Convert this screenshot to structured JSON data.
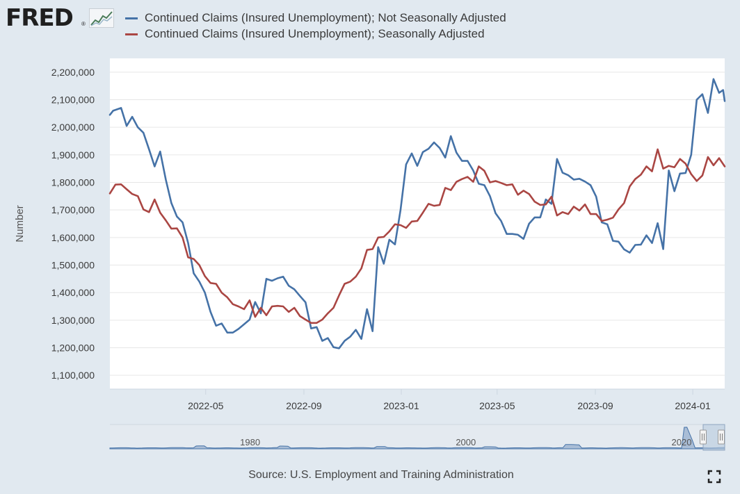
{
  "header": {
    "logo_text": "FRED",
    "logo_reg": "®"
  },
  "colors": {
    "background": "#e1e9f0",
    "plot_bg": "#ffffff",
    "grid": "#e6e6e6",
    "series_nsa": "#4572a7",
    "series_sa": "#aa4643"
  },
  "chart_data": {
    "type": "line",
    "title": "",
    "xlabel": "",
    "ylabel": "Number",
    "xlim": [
      "2022-01-01",
      "2024-02-10"
    ],
    "ylim": [
      1050000,
      2250000
    ],
    "y_ticks": [
      1100000,
      1200000,
      1300000,
      1400000,
      1500000,
      1600000,
      1700000,
      1800000,
      1900000,
      2000000,
      2100000,
      2200000
    ],
    "y_tick_labels": [
      "1,100,000",
      "1,200,000",
      "1,300,000",
      "1,400,000",
      "1,500,000",
      "1,600,000",
      "1,700,000",
      "1,800,000",
      "1,900,000",
      "2,000,000",
      "2,100,000",
      "2,200,000"
    ],
    "x_ticks": [
      "2022-05-01",
      "2022-09-01",
      "2023-01-01",
      "2023-05-01",
      "2023-09-01",
      "2024-01-01"
    ],
    "x_tick_labels": [
      "2022-05",
      "2022-09",
      "2023-01",
      "2023-05",
      "2023-09",
      "2024-01"
    ],
    "grid": "horizontal",
    "legend_position": "top-left",
    "series": [
      {
        "name": "Continued Claims (Insured Unemployment); Not Seasonally Adjusted",
        "color": "#4572a7",
        "points": [
          [
            "2022-01-01",
            2045000
          ],
          [
            "2022-01-05",
            2060000
          ],
          [
            "2022-01-15",
            2070000
          ],
          [
            "2022-01-22",
            2005000
          ],
          [
            "2022-01-29",
            2038000
          ],
          [
            "2022-02-05",
            2000000
          ],
          [
            "2022-02-12",
            1980000
          ],
          [
            "2022-02-19",
            1920000
          ],
          [
            "2022-02-26",
            1858000
          ],
          [
            "2022-03-05",
            1912000
          ],
          [
            "2022-03-12",
            1810000
          ],
          [
            "2022-03-19",
            1725000
          ],
          [
            "2022-03-26",
            1676000
          ],
          [
            "2022-04-02",
            1655000
          ],
          [
            "2022-04-09",
            1580000
          ],
          [
            "2022-04-16",
            1470000
          ],
          [
            "2022-04-23",
            1440000
          ],
          [
            "2022-04-30",
            1400000
          ],
          [
            "2022-05-07",
            1330000
          ],
          [
            "2022-05-14",
            1280000
          ],
          [
            "2022-05-21",
            1288000
          ],
          [
            "2022-05-28",
            1255000
          ],
          [
            "2022-06-04",
            1255000
          ],
          [
            "2022-06-11",
            1268000
          ],
          [
            "2022-06-18",
            1285000
          ],
          [
            "2022-06-25",
            1302000
          ],
          [
            "2022-07-02",
            1366000
          ],
          [
            "2022-07-09",
            1325000
          ],
          [
            "2022-07-16",
            1450000
          ],
          [
            "2022-07-23",
            1443000
          ],
          [
            "2022-07-30",
            1452000
          ],
          [
            "2022-08-06",
            1458000
          ],
          [
            "2022-08-13",
            1425000
          ],
          [
            "2022-08-20",
            1412000
          ],
          [
            "2022-08-27",
            1388000
          ],
          [
            "2022-09-03",
            1365000
          ],
          [
            "2022-09-10",
            1270000
          ],
          [
            "2022-09-17",
            1275000
          ],
          [
            "2022-09-24",
            1225000
          ],
          [
            "2022-10-01",
            1235000
          ],
          [
            "2022-10-08",
            1202000
          ],
          [
            "2022-10-15",
            1198000
          ],
          [
            "2022-10-22",
            1225000
          ],
          [
            "2022-10-29",
            1240000
          ],
          [
            "2022-11-05",
            1265000
          ],
          [
            "2022-11-12",
            1232000
          ],
          [
            "2022-11-19",
            1340000
          ],
          [
            "2022-11-26",
            1260000
          ],
          [
            "2022-12-03",
            1565000
          ],
          [
            "2022-12-10",
            1505000
          ],
          [
            "2022-12-17",
            1592000
          ],
          [
            "2022-12-24",
            1575000
          ],
          [
            "2022-12-31",
            1700000
          ],
          [
            "2023-01-07",
            1865000
          ],
          [
            "2023-01-14",
            1905000
          ],
          [
            "2023-01-21",
            1860000
          ],
          [
            "2023-01-28",
            1910000
          ],
          [
            "2023-02-04",
            1922000
          ],
          [
            "2023-02-11",
            1945000
          ],
          [
            "2023-02-18",
            1925000
          ],
          [
            "2023-02-25",
            1890000
          ],
          [
            "2023-03-04",
            1968000
          ],
          [
            "2023-03-11",
            1908000
          ],
          [
            "2023-03-18",
            1878000
          ],
          [
            "2023-03-25",
            1878000
          ],
          [
            "2023-04-01",
            1843000
          ],
          [
            "2023-04-08",
            1795000
          ],
          [
            "2023-04-15",
            1790000
          ],
          [
            "2023-04-22",
            1750000
          ],
          [
            "2023-04-29",
            1688000
          ],
          [
            "2023-05-06",
            1660000
          ],
          [
            "2023-05-13",
            1613000
          ],
          [
            "2023-05-20",
            1613000
          ],
          [
            "2023-05-27",
            1610000
          ],
          [
            "2023-06-03",
            1595000
          ],
          [
            "2023-06-10",
            1650000
          ],
          [
            "2023-06-17",
            1673000
          ],
          [
            "2023-06-24",
            1673000
          ],
          [
            "2023-07-01",
            1738000
          ],
          [
            "2023-07-08",
            1722000
          ],
          [
            "2023-07-15",
            1885000
          ],
          [
            "2023-07-22",
            1835000
          ],
          [
            "2023-07-29",
            1826000
          ],
          [
            "2023-08-05",
            1810000
          ],
          [
            "2023-08-12",
            1813000
          ],
          [
            "2023-08-19",
            1803000
          ],
          [
            "2023-08-26",
            1790000
          ],
          [
            "2023-09-02",
            1748000
          ],
          [
            "2023-09-09",
            1655000
          ],
          [
            "2023-09-16",
            1648000
          ],
          [
            "2023-09-23",
            1588000
          ],
          [
            "2023-09-30",
            1585000
          ],
          [
            "2023-10-07",
            1557000
          ],
          [
            "2023-10-14",
            1545000
          ],
          [
            "2023-10-21",
            1573000
          ],
          [
            "2023-10-28",
            1574000
          ],
          [
            "2023-11-04",
            1608000
          ],
          [
            "2023-11-11",
            1580000
          ],
          [
            "2023-11-18",
            1652000
          ],
          [
            "2023-11-25",
            1558000
          ],
          [
            "2023-12-02",
            1843000
          ],
          [
            "2023-12-09",
            1768000
          ],
          [
            "2023-12-16",
            1832000
          ],
          [
            "2023-12-23",
            1834000
          ],
          [
            "2023-12-30",
            1900000
          ],
          [
            "2024-01-06",
            2100000
          ],
          [
            "2024-01-13",
            2120000
          ],
          [
            "2024-01-20",
            2052000
          ],
          [
            "2024-01-27",
            2175000
          ],
          [
            "2024-02-03",
            2125000
          ],
          [
            "2024-02-08",
            2135000
          ],
          [
            "2024-02-10",
            2095000
          ]
        ]
      },
      {
        "name": "Continued Claims (Insured Unemployment); Seasonally Adjusted",
        "color": "#aa4643",
        "points": [
          [
            "2022-01-01",
            1760000
          ],
          [
            "2022-01-08",
            1792000
          ],
          [
            "2022-01-15",
            1793000
          ],
          [
            "2022-01-22",
            1775000
          ],
          [
            "2022-01-29",
            1758000
          ],
          [
            "2022-02-05",
            1750000
          ],
          [
            "2022-02-12",
            1702000
          ],
          [
            "2022-02-19",
            1692000
          ],
          [
            "2022-02-26",
            1738000
          ],
          [
            "2022-03-05",
            1690000
          ],
          [
            "2022-03-12",
            1662000
          ],
          [
            "2022-03-19",
            1632000
          ],
          [
            "2022-03-26",
            1633000
          ],
          [
            "2022-04-02",
            1600000
          ],
          [
            "2022-04-09",
            1528000
          ],
          [
            "2022-04-16",
            1522000
          ],
          [
            "2022-04-23",
            1500000
          ],
          [
            "2022-04-30",
            1460000
          ],
          [
            "2022-05-07",
            1435000
          ],
          [
            "2022-05-14",
            1432000
          ],
          [
            "2022-05-21",
            1400000
          ],
          [
            "2022-05-28",
            1383000
          ],
          [
            "2022-06-04",
            1358000
          ],
          [
            "2022-06-11",
            1350000
          ],
          [
            "2022-06-18",
            1340000
          ],
          [
            "2022-06-25",
            1372000
          ],
          [
            "2022-07-02",
            1312000
          ],
          [
            "2022-07-09",
            1345000
          ],
          [
            "2022-07-16",
            1318000
          ],
          [
            "2022-07-23",
            1350000
          ],
          [
            "2022-07-30",
            1352000
          ],
          [
            "2022-08-06",
            1350000
          ],
          [
            "2022-08-13",
            1330000
          ],
          [
            "2022-08-20",
            1345000
          ],
          [
            "2022-08-27",
            1315000
          ],
          [
            "2022-09-03",
            1302000
          ],
          [
            "2022-09-10",
            1290000
          ],
          [
            "2022-09-17",
            1290000
          ],
          [
            "2022-09-24",
            1302000
          ],
          [
            "2022-10-01",
            1325000
          ],
          [
            "2022-10-08",
            1345000
          ],
          [
            "2022-10-15",
            1390000
          ],
          [
            "2022-10-22",
            1432000
          ],
          [
            "2022-10-29",
            1440000
          ],
          [
            "2022-11-05",
            1458000
          ],
          [
            "2022-11-12",
            1488000
          ],
          [
            "2022-11-19",
            1555000
          ],
          [
            "2022-11-26",
            1558000
          ],
          [
            "2022-12-03",
            1600000
          ],
          [
            "2022-12-10",
            1602000
          ],
          [
            "2022-12-17",
            1622000
          ],
          [
            "2022-12-24",
            1648000
          ],
          [
            "2022-12-31",
            1645000
          ],
          [
            "2023-01-07",
            1635000
          ],
          [
            "2023-01-14",
            1658000
          ],
          [
            "2023-01-21",
            1660000
          ],
          [
            "2023-01-28",
            1690000
          ],
          [
            "2023-02-04",
            1722000
          ],
          [
            "2023-02-11",
            1715000
          ],
          [
            "2023-02-18",
            1718000
          ],
          [
            "2023-02-25",
            1780000
          ],
          [
            "2023-03-04",
            1772000
          ],
          [
            "2023-03-11",
            1802000
          ],
          [
            "2023-03-18",
            1812000
          ],
          [
            "2023-03-25",
            1820000
          ],
          [
            "2023-04-01",
            1802000
          ],
          [
            "2023-04-08",
            1858000
          ],
          [
            "2023-04-15",
            1842000
          ],
          [
            "2023-04-22",
            1800000
          ],
          [
            "2023-04-29",
            1805000
          ],
          [
            "2023-05-06",
            1798000
          ],
          [
            "2023-05-13",
            1790000
          ],
          [
            "2023-05-20",
            1793000
          ],
          [
            "2023-05-27",
            1755000
          ],
          [
            "2023-06-03",
            1770000
          ],
          [
            "2023-06-10",
            1758000
          ],
          [
            "2023-06-17",
            1730000
          ],
          [
            "2023-06-24",
            1718000
          ],
          [
            "2023-07-01",
            1720000
          ],
          [
            "2023-07-08",
            1748000
          ],
          [
            "2023-07-15",
            1680000
          ],
          [
            "2023-07-22",
            1692000
          ],
          [
            "2023-07-29",
            1685000
          ],
          [
            "2023-08-05",
            1712000
          ],
          [
            "2023-08-12",
            1698000
          ],
          [
            "2023-08-19",
            1720000
          ],
          [
            "2023-08-26",
            1685000
          ],
          [
            "2023-09-02",
            1685000
          ],
          [
            "2023-09-09",
            1660000
          ],
          [
            "2023-09-16",
            1665000
          ],
          [
            "2023-09-23",
            1672000
          ],
          [
            "2023-09-30",
            1702000
          ],
          [
            "2023-10-07",
            1725000
          ],
          [
            "2023-10-14",
            1785000
          ],
          [
            "2023-10-21",
            1812000
          ],
          [
            "2023-10-28",
            1828000
          ],
          [
            "2023-11-04",
            1858000
          ],
          [
            "2023-11-11",
            1840000
          ],
          [
            "2023-11-18",
            1920000
          ],
          [
            "2023-11-25",
            1850000
          ],
          [
            "2023-12-02",
            1860000
          ],
          [
            "2023-12-09",
            1855000
          ],
          [
            "2023-12-16",
            1885000
          ],
          [
            "2023-12-23",
            1868000
          ],
          [
            "2023-12-30",
            1830000
          ],
          [
            "2024-01-06",
            1805000
          ],
          [
            "2024-01-13",
            1825000
          ],
          [
            "2024-01-20",
            1892000
          ],
          [
            "2024-01-27",
            1862000
          ],
          [
            "2024-02-03",
            1888000
          ],
          [
            "2024-02-10",
            1858000
          ]
        ]
      }
    ],
    "navigator": {
      "labels": [
        "1980",
        "2000",
        "2020"
      ],
      "label_years": [
        1980,
        2000,
        2020
      ],
      "year_range": [
        1967,
        2024
      ],
      "selection_years": [
        2022.0,
        2024.1
      ]
    }
  },
  "footer": {
    "source": "Source: U.S. Employment and Training Administration"
  },
  "icons": {
    "fullscreen": "fullscreen-icon",
    "logo_graph": "trend-chart-icon"
  }
}
